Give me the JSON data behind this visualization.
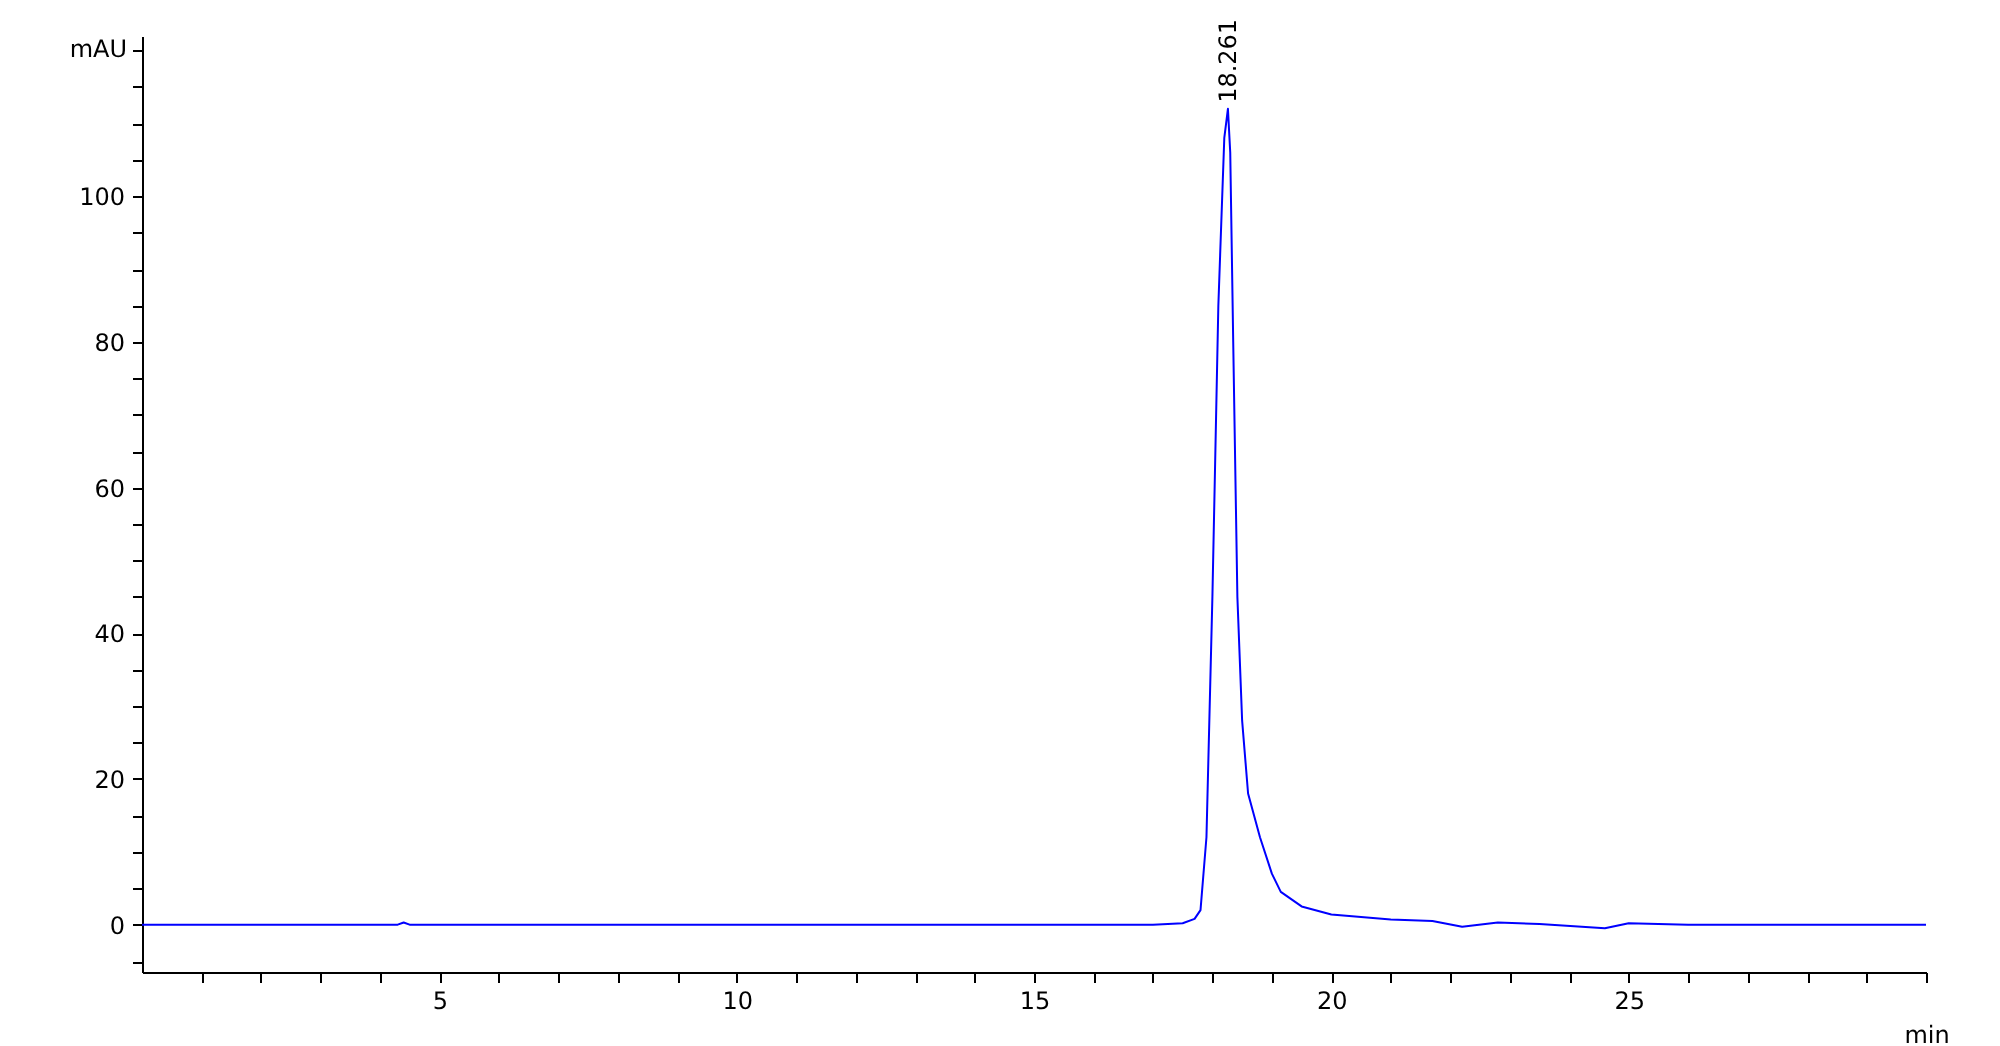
{
  "chart_data": {
    "type": "line",
    "xlabel": "min",
    "ylabel": "mAU",
    "grid": false,
    "color": "#0000ff",
    "x": [
      0,
      4.3,
      4.4,
      4.5,
      10,
      17,
      17.5,
      17.7,
      17.8,
      17.9,
      18.0,
      18.1,
      18.2,
      18.261,
      18.3,
      18.35,
      18.42,
      18.5,
      18.6,
      18.8,
      19.0,
      19.15,
      19.5,
      20.0,
      21.0,
      21.7,
      22.2,
      22.8,
      23.5,
      24.6,
      25.0,
      26,
      30
    ],
    "values": [
      0,
      0,
      0.3,
      0,
      0,
      0,
      0.2,
      0.8,
      2,
      12,
      45,
      85,
      108,
      112,
      106,
      80,
      45,
      28,
      18,
      12,
      7,
      4.5,
      2.5,
      1.4,
      0.7,
      0.5,
      -0.3,
      0.3,
      0.1,
      -0.5,
      0.2,
      0,
      0
    ],
    "xlim": [
      0,
      30
    ],
    "xticks": [
      {
        "value": 1,
        "label": null
      },
      {
        "value": 2,
        "label": null
      },
      {
        "value": 3,
        "label": null
      },
      {
        "value": 4,
        "label": null
      },
      5,
      {
        "value": 6,
        "label": null
      },
      {
        "value": 7,
        "label": null
      },
      {
        "value": 8,
        "label": null
      },
      {
        "value": 9,
        "label": null
      },
      10,
      {
        "value": 11,
        "label": null
      },
      {
        "value": 12,
        "label": null
      },
      {
        "value": 13,
        "label": null
      },
      {
        "value": 14,
        "label": null
      },
      15,
      {
        "value": 16,
        "label": null
      },
      {
        "value": 17,
        "label": null
      },
      {
        "value": 18,
        "label": null
      },
      {
        "value": 19,
        "label": null
      },
      20,
      {
        "value": 21,
        "label": null
      },
      {
        "value": 22,
        "label": null
      },
      {
        "value": 23,
        "label": null
      },
      {
        "value": 24,
        "label": null
      },
      25,
      {
        "value": 26,
        "label": null
      },
      {
        "value": 27,
        "label": null
      },
      {
        "value": 28,
        "label": null
      },
      {
        "value": 29,
        "label": null
      },
      {
        "value": 30,
        "label": null
      }
    ],
    "ylim": [
      -6.5,
      122
    ],
    "yticks": [
      {
        "value": -5,
        "label": null
      },
      0,
      {
        "value": 5,
        "label": null
      },
      {
        "value": 10,
        "label": null
      },
      {
        "value": 15,
        "label": null
      },
      20,
      {
        "value": 25,
        "label": null
      },
      {
        "value": 30,
        "label": null
      },
      {
        "value": 35,
        "label": null
      },
      40,
      {
        "value": 45,
        "label": null
      },
      {
        "value": 50,
        "label": null
      },
      {
        "value": 55,
        "label": null
      },
      60,
      {
        "value": 65,
        "label": null
      },
      {
        "value": 70,
        "label": null
      },
      {
        "value": 75,
        "label": null
      },
      80,
      {
        "value": 85,
        "label": null
      },
      {
        "value": 90,
        "label": null
      },
      {
        "value": 95,
        "label": null
      },
      100,
      {
        "value": 105,
        "label": null
      },
      {
        "value": 110,
        "label": null
      },
      {
        "value": 115,
        "label": null
      },
      {
        "value": 120,
        "label": null
      }
    ],
    "annotations": [
      {
        "text": "18.261",
        "x": 18.261,
        "y": 112
      }
    ]
  }
}
